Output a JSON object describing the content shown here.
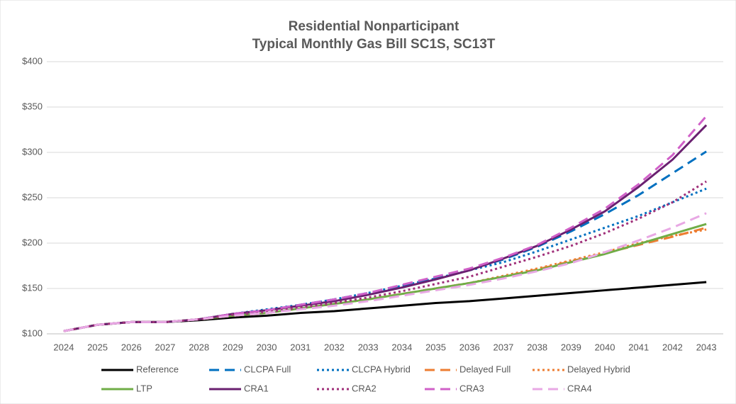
{
  "chart_data": {
    "type": "line",
    "title": [
      "Residential Nonparticipant",
      "Typical Monthly Gas Bill SC1S, SC13T"
    ],
    "categories": [
      "2024",
      "2025",
      "2026",
      "2027",
      "2028",
      "2029",
      "2030",
      "2031",
      "2032",
      "2033",
      "2034",
      "2035",
      "2036",
      "2037",
      "2038",
      "2039",
      "2040",
      "2041",
      "2042",
      "2043"
    ],
    "ylim": [
      100,
      400
    ],
    "yticks": [
      {
        "value": 100,
        "label": "$100"
      },
      {
        "value": 150,
        "label": "$150"
      },
      {
        "value": 200,
        "label": "$200"
      },
      {
        "value": 250,
        "label": "$250"
      },
      {
        "value": 300,
        "label": "$300"
      },
      {
        "value": 350,
        "label": "$350"
      },
      {
        "value": 400,
        "label": "$400"
      }
    ],
    "grid": true,
    "legend": "bottom",
    "series": [
      {
        "name": "Reference",
        "color": "#000000",
        "style": "solid",
        "values": [
          103,
          110,
          113,
          113,
          115,
          118,
          120,
          123,
          125,
          128,
          131,
          134,
          136,
          139,
          142,
          145,
          148,
          151,
          154,
          157
        ]
      },
      {
        "name": "CLCPA Full",
        "color": "#0070c0",
        "style": "dashed",
        "values": [
          103,
          110,
          113,
          113,
          116,
          122,
          126,
          132,
          138,
          145,
          153,
          162,
          171,
          182,
          196,
          213,
          232,
          253,
          277,
          301
        ]
      },
      {
        "name": "CLCPA Hybrid",
        "color": "#0070c0",
        "style": "dotted",
        "values": [
          103,
          110,
          113,
          113,
          116,
          122,
          127,
          132,
          138,
          145,
          153,
          161,
          170,
          179,
          191,
          204,
          217,
          230,
          245,
          260
        ]
      },
      {
        "name": "Delayed Full",
        "color": "#ed7d31",
        "style": "dashed",
        "values": [
          103,
          110,
          113,
          113,
          116,
          120,
          123,
          128,
          133,
          138,
          144,
          150,
          156,
          163,
          171,
          180,
          189,
          198,
          207,
          217
        ]
      },
      {
        "name": "Delayed Hybrid",
        "color": "#ed7d31",
        "style": "dotted",
        "values": [
          103,
          110,
          113,
          113,
          116,
          120,
          123,
          128,
          133,
          138,
          144,
          150,
          156,
          164,
          172,
          181,
          190,
          200,
          208,
          215
        ]
      },
      {
        "name": "LTP",
        "color": "#70ad47",
        "style": "solid",
        "values": [
          103,
          110,
          113,
          113,
          116,
          120,
          123,
          128,
          133,
          138,
          144,
          150,
          156,
          163,
          170,
          179,
          188,
          199,
          210,
          221
        ]
      },
      {
        "name": "CRA1",
        "color": "#6a2070",
        "style": "solid",
        "values": [
          103,
          110,
          113,
          113,
          116,
          122,
          126,
          131,
          136,
          143,
          151,
          160,
          170,
          183,
          197,
          215,
          235,
          262,
          292,
          330
        ]
      },
      {
        "name": "CRA2",
        "color": "#a0307a",
        "style": "dotted",
        "values": [
          103,
          110,
          113,
          113,
          116,
          121,
          124,
          129,
          134,
          140,
          147,
          155,
          163,
          174,
          185,
          197,
          211,
          227,
          245,
          268
        ]
      },
      {
        "name": "CRA3",
        "color": "#d060c8",
        "style": "dashed",
        "values": [
          103,
          110,
          113,
          113,
          116,
          122,
          126,
          132,
          138,
          145,
          154,
          163,
          172,
          184,
          198,
          217,
          238,
          265,
          297,
          340
        ]
      },
      {
        "name": "CRA4",
        "color": "#e8a8e4",
        "style": "dashed",
        "values": [
          103,
          110,
          113,
          113,
          116,
          120,
          123,
          127,
          131,
          136,
          142,
          148,
          154,
          161,
          169,
          178,
          190,
          203,
          217,
          233
        ]
      }
    ]
  }
}
